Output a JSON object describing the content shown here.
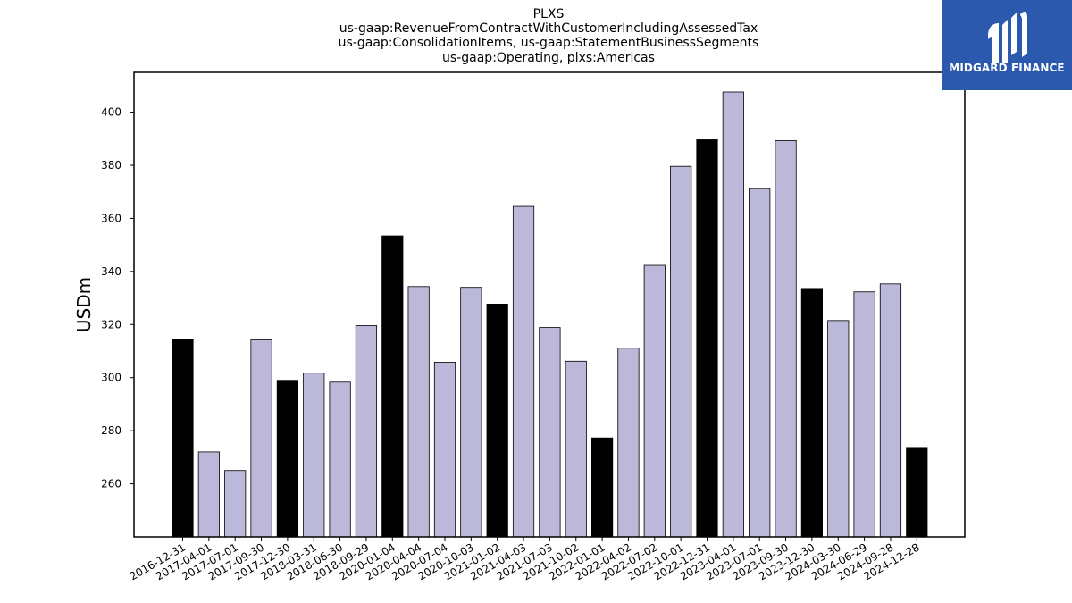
{
  "chart_data": {
    "type": "bar",
    "title": [
      "PLXS",
      "us-gaap:RevenueFromContractWithCustomerIncludingAssessedTax",
      "us-gaap:ConsolidationItems, us-gaap:StatementBusinessSegments",
      "us-gaap:Operating, plxs:Americas"
    ],
    "ylabel": "USDm",
    "xlabel": "",
    "ylim": [
      240,
      415
    ],
    "yticks": [
      260,
      280,
      300,
      320,
      340,
      360,
      380,
      400
    ],
    "grid": false,
    "colors": {
      "highlight": "#000000",
      "normal": "#bcb8d9",
      "edge": "#000000"
    },
    "categories": [
      "2016-12-31",
      "2017-04-01",
      "2017-07-01",
      "2017-09-30",
      "2017-12-30",
      "2018-03-31",
      "2018-06-30",
      "2018-09-29",
      "2020-01-04",
      "2020-04-04",
      "2020-07-04",
      "2020-10-03",
      "2021-01-02",
      "2021-04-03",
      "2021-07-03",
      "2021-10-02",
      "2022-01-01",
      "2022-04-02",
      "2022-07-02",
      "2022-10-01",
      "2022-12-31",
      "2023-04-01",
      "2023-07-01",
      "2023-09-30",
      "2023-12-30",
      "2024-03-30",
      "2024-06-29",
      "2024-09-28",
      "2024-12-28"
    ],
    "values": [
      314.5,
      272,
      265,
      314.2,
      299,
      301.7,
      298.3,
      319.6,
      353.4,
      334.3,
      305.8,
      334,
      327.7,
      364.5,
      318.9,
      306.2,
      277.3,
      311.1,
      342.3,
      379.6,
      389.6,
      407.6,
      371.2,
      389.3,
      333.6,
      321.5,
      332.3,
      335.3,
      273.7
    ],
    "highlighted": [
      true,
      false,
      false,
      false,
      true,
      false,
      false,
      false,
      true,
      false,
      false,
      false,
      true,
      false,
      false,
      false,
      true,
      false,
      false,
      false,
      true,
      false,
      false,
      false,
      true,
      false,
      false,
      false,
      true
    ]
  },
  "logo": {
    "text": "MIDGARD FINANCE",
    "bg_color": "#2b59ad"
  }
}
